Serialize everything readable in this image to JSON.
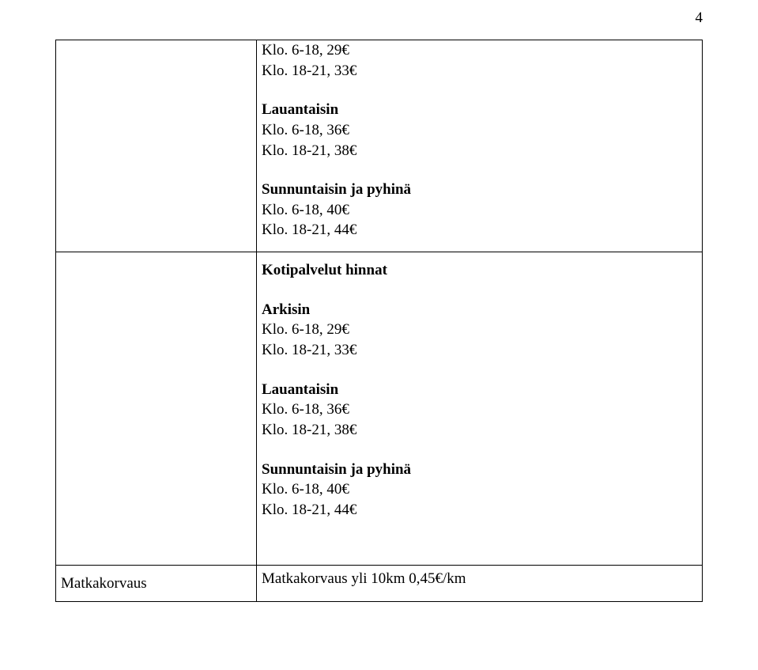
{
  "page_number": "4",
  "box1": {
    "line1": "Klo. 6-18, 29€",
    "line2": "Klo. 18-21, 33€",
    "saturday_heading": "Lauantaisin",
    "sat_line1": "Klo. 6-18, 36€",
    "sat_line2": "Klo. 18-21, 38€",
    "sunday_heading": "Sunnuntaisin ja pyhinä",
    "sun_line1": "Klo. 6-18, 40€",
    "sun_line2": "Klo. 18-21, 44€"
  },
  "box2": {
    "heading": "Kotipalvelut hinnat",
    "weekday_heading": "Arkisin",
    "wk_line1": "Klo. 6-18, 29€",
    "wk_line2": "Klo. 18-21, 33€",
    "saturday_heading": "Lauantaisin",
    "sat_line1": "Klo. 6-18, 36€",
    "sat_line2": "Klo. 18-21, 38€",
    "sunday_heading": "Sunnuntaisin ja pyhinä",
    "sun_line1": "Klo. 6-18, 40€",
    "sun_line2": "Klo. 18-21, 44€"
  },
  "box3": {
    "label": "Matkakorvaus",
    "value": "Matkakorvaus yli 10km  0,45€/km"
  }
}
